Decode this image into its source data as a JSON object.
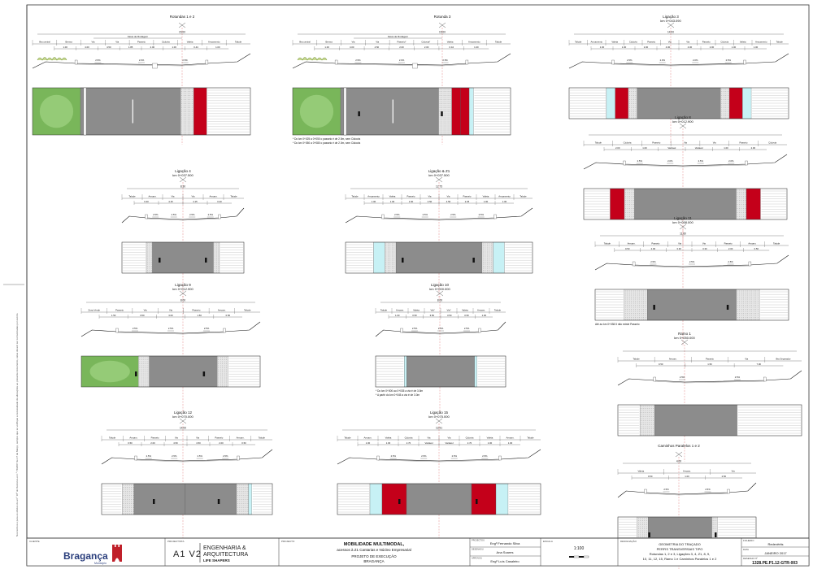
{
  "sections": [
    {
      "id": "rot12",
      "title": "Rotundas 1 e 2",
      "km": "",
      "width_total": "15.00",
      "top_label": "Faixa de Rodagem",
      "labels": [
        "Ilha central",
        "Berma",
        "Via",
        "Via",
        "Passeio",
        "Ciclovia",
        "Valeta",
        "Arruamento",
        "Talude"
      ],
      "dims": [
        "1.00",
        "4.00",
        "4.50",
        "1.85",
        "2.00",
        "1.00",
        "0.44",
        "1.00"
      ],
      "slopes": [
        "2.5%",
        "2.0%",
        "2.5%"
      ],
      "notes": []
    },
    {
      "id": "rot3",
      "title": "Rotunda 3",
      "km": "",
      "width_total": "15.00",
      "top_label": "Faixa de Rodagem",
      "labels": [
        "Ilha central",
        "Berma",
        "Via",
        "Via",
        "Passeio*",
        "Ciclovia*",
        "Valeta",
        "Arruamento",
        "Talude"
      ],
      "dims": [
        "1.00",
        "4.00",
        "4.50",
        "2.00",
        "2.00",
        "0.44",
        "1.00"
      ],
      "slopes": [
        "2.5%",
        "2.0%",
        "2.5%"
      ],
      "notes": [
        "* Do km 0+025 a 0+050 o passeio é de 2.5m, sem Ciclovia",
        "* Do km 0+050 a 0+080 o passeio é de 2.0m, sem Ciclovia"
      ]
    },
    {
      "id": "lig3",
      "title": "Ligação 3",
      "km": "km 0+043.090",
      "width_total": "14.00",
      "top_label": "",
      "labels": [
        "Talude",
        "Arruamento",
        "Valeta",
        "Ciclovia",
        "Passeio",
        "Via",
        "Via",
        "Passeio",
        "Ciclovia",
        "Valeta",
        "Arruamento",
        "Talude"
      ],
      "dims": [
        "1.00",
        "1.00",
        "2.00",
        "4.00",
        "4.00",
        "2.00",
        "1.00",
        "1.00"
      ],
      "slopes": [
        "2.5%",
        "2.0%",
        "2.0%",
        "2.5%"
      ],
      "notes": []
    },
    {
      "id": "lig8",
      "title": "Ligação 8",
      "km": "km 0+012.900",
      "width_total": "",
      "top_label": "",
      "labels": [
        "Talude",
        "Ciclovia",
        "Passeio",
        "Via",
        "Via",
        "Passeio",
        "Ciclovia"
      ],
      "dims": [
        "2.00",
        "1.00",
        "Variável",
        "Variável",
        "1.00",
        "2.00"
      ],
      "slopes": [
        "2.5%",
        "2.0%",
        "2.5%",
        "2.0%"
      ],
      "notes": []
    },
    {
      "id": "lig4",
      "title": "Ligação 4",
      "km": "km 0+037.500",
      "width_total": "8.30",
      "top_label": "",
      "labels": [
        "Talude",
        "Arruam.",
        "Via",
        "Via",
        "Arruam.",
        "Talude"
      ],
      "dims": [
        "0.40",
        "4.15",
        "4.15",
        "0.40"
      ],
      "slopes": [
        "2.5%",
        "2.5%",
        "2.5%",
        "2.5%"
      ],
      "notes": []
    },
    {
      "id": "lig2",
      "title": "Ligação & Z1",
      "km": "km 0+037.500",
      "width_total": "12.75",
      "top_label": "",
      "labels": [
        "Talude",
        "Arruamento",
        "Valeta",
        "Passeio",
        "Via",
        "Via",
        "Passeio",
        "Valeta",
        "Arruamento",
        "Talude"
      ],
      "dims": [
        "1.00",
        "1.00",
        "1.60",
        "4.50",
        "4.50",
        "2.25",
        "1.00",
        "1.00"
      ],
      "slopes": [
        "2.5%",
        "2.5%",
        "2.5%",
        "2.5%"
      ],
      "notes": []
    },
    {
      "id": "lig9",
      "title": "Ligação 9",
      "km": "km 0+012.900",
      "width_total": "8.00",
      "top_label": "",
      "labels": [
        "Zona Verde",
        "Passeio",
        "Via",
        "Via",
        "Passeio",
        "Arruam.",
        "Talude"
      ],
      "dims": [
        "1.50",
        "3.50",
        "3.00",
        "1.50",
        "0.50"
      ],
      "slopes": [
        "2.5%",
        "2.5%",
        "2.5%"
      ],
      "notes": []
    },
    {
      "id": "lig10",
      "title": "Ligação 10",
      "km": "km 0+000.000",
      "width_total": "8.00",
      "top_label": "",
      "labels": [
        "Talude",
        "Arruam.",
        "Valeta",
        "Via*",
        "Via*",
        "Valeta",
        "Arruam.",
        "Talude"
      ],
      "dims": [
        "1.00",
        "0.50",
        "3.50",
        "3.50",
        "0.50",
        "1.00"
      ],
      "slopes": [
        "2.5%",
        "2.5%",
        "2.5%"
      ],
      "notes": [
        "* Do km 0+000 ao 0+035 a via é de 3.5m",
        "* A partir do km 0+045 a via é de 3.0m"
      ]
    },
    {
      "id": "lig11",
      "title": "Ligação 11",
      "km": "km 0+058.000",
      "width_total": "11.60",
      "top_label": "",
      "labels": [
        "Talude",
        "Arruam.",
        "Passeio",
        "Via",
        "Via",
        "Passeio",
        "Arruam.",
        "Talude"
      ],
      "dims": [
        "0.50",
        "2.00",
        "3.30",
        "3.30",
        "2.00",
        "0.50"
      ],
      "slopes": [
        "2.5%",
        "2.5%",
        "2.5%"
      ],
      "notes": [
        "Até ao km 0+038.5 não existe Passeio"
      ]
    },
    {
      "id": "ramo1",
      "title": "Ramo 1",
      "km": "km 0+050.000",
      "width_total": "",
      "top_label": "",
      "labels": [
        "Talude",
        "Arruam.",
        "Passeio",
        "Via",
        "Ilha Separador"
      ],
      "dims": [
        "0.50",
        "1.50",
        "7.00"
      ],
      "slopes": [
        "2.5%",
        "2.5%"
      ],
      "notes": []
    },
    {
      "id": "lig12",
      "title": "Ligação 12",
      "km": "km 0+070.000",
      "width_total": "14.00",
      "top_label": "",
      "labels": [
        "Talude",
        "Arruam.",
        "Passeio",
        "Via",
        "Via",
        "Passeio",
        "Arruam.",
        "Talude"
      ],
      "dims": [
        "0.50",
        "2.00",
        "4.50",
        "4.50",
        "2.00",
        "0.50"
      ],
      "slopes": [
        "2.5%",
        "2.5%",
        "2.5%",
        "2.5%"
      ],
      "notes": []
    },
    {
      "id": "lig15",
      "title": "Ligação 15",
      "km": "km 0+075.000",
      "width_total": "13.91",
      "top_label": "",
      "labels": [
        "Talude",
        "Arruam.",
        "Valeta",
        "Ciclovia",
        "Via",
        "Via",
        "Ciclovia",
        "Valeta",
        "Arruam.",
        "Talude"
      ],
      "dims": [
        "1.00",
        "1.00",
        "2.70",
        "Variável",
        "Variável",
        "2.70",
        "1.00",
        "1.00"
      ],
      "slopes": [
        "2.5%",
        "2.5%",
        "2.5%",
        "2.5%"
      ],
      "notes": []
    },
    {
      "id": "cam",
      "title": "Caminhos Paralelos 1 e 2",
      "km": "",
      "width_total": "4.00",
      "top_label": "",
      "labels": [
        "Valeta",
        "Arruam.",
        "Via"
      ],
      "dims": [
        "0.50",
        "1.00",
        "2.50"
      ],
      "slopes": [
        "2.5%",
        "2.5%"
      ],
      "notes": []
    }
  ],
  "title_block": {
    "client_label": "CLIENTE",
    "client_name": "Bragança",
    "client_sub": "Município",
    "designer_label": "PROJECTISTA",
    "designer_name_1": "ENGENHARIA &",
    "designer_name_2": "ARQUITECTURA",
    "designer_name_3": "LIFE SHAPERS",
    "designer_logo": "A1 V2",
    "project_label": "PROJECTO",
    "project_title": "MOBILIDADE MULTIMODAL,",
    "project_sub": "acessos à Z1 Cantarias e Núcleo Empresarial",
    "project_phase": "PROJETO DE EXECUÇÃO",
    "project_place": "BRAGANÇA",
    "roles": [
      {
        "label": "PROJECTOU",
        "name": "Engº Fernando Silva"
      },
      {
        "label": "DESENHOU",
        "name": "Ana Soares"
      },
      {
        "label": "APROVOU",
        "name": "Engº Luís Casaleiro"
      }
    ],
    "scale_label": "ESCALA",
    "scale": "1:100",
    "sheet_label": "DESIGNAÇÃO",
    "sheet_title_1": "GEOMETRIA DO TRAÇADO",
    "sheet_title_2": "PERFIS TRANSVERSAIS TIPO",
    "sheet_title_3": "Rotundas 1, 2 e 3, Ligações 3, 4, Z1, 8, 9,",
    "sheet_title_4": "10, 11, 12, 15, Ramo 1 e Caminhos Paralelos 1 e 2",
    "file_label": "FICHEIRO",
    "file_value": "Redevêrtis",
    "date_label": "DATA",
    "date_value": "JANEIRO 2017",
    "drawing_label": "DESENHO Nº",
    "drawing_no": "1328.PE.P1.12-GTR-003"
  },
  "margin_text": "Nos termos e para os efeitos do art.º 10º do Decreto-Lei n.º 74/2007 de 27 de Março, sempre que se verifique a necessidade de alterações ao presente documento, estas devem ser comunicadas por escrito."
}
